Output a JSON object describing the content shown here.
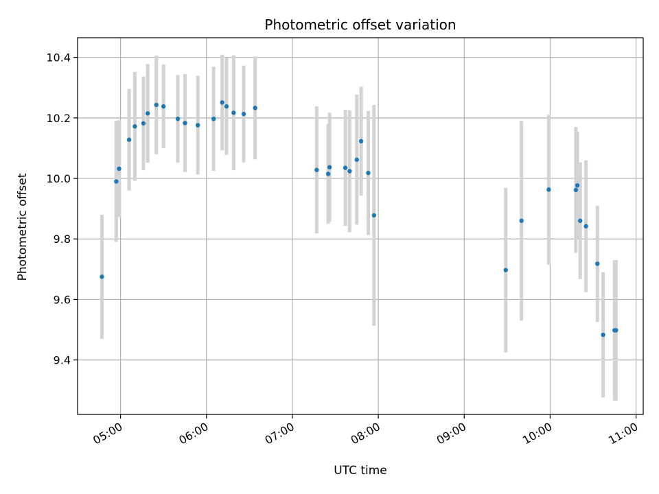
{
  "chart_data": {
    "type": "scatter",
    "title": "Photometric offset variation",
    "xlabel": "UTC time",
    "ylabel": "Photometric offset",
    "x_ticks": [
      "05:00",
      "06:00",
      "07:00",
      "08:00",
      "09:00",
      "10:00",
      "11:00"
    ],
    "y_ticks": [
      "9.4",
      "9.6",
      "9.8",
      "10.0",
      "10.2",
      "10.4"
    ],
    "xlim": [
      "04:30",
      "11:05"
    ],
    "ylim": [
      9.22,
      10.465
    ],
    "grid": true,
    "colors": {
      "marker": "#1f77b4",
      "errorbar": "#d3d3d3",
      "grid": "#b0b0b0"
    },
    "points": [
      {
        "t": "04:47",
        "y": 9.675,
        "err": 0.205
      },
      {
        "t": "04:57",
        "y": 9.99,
        "err": 0.2
      },
      {
        "t": "04:59",
        "y": 10.032,
        "err": 0.16
      },
      {
        "t": "05:06",
        "y": 10.128,
        "err": 0.168
      },
      {
        "t": "05:10",
        "y": 10.172,
        "err": 0.18
      },
      {
        "t": "05:16",
        "y": 10.182,
        "err": 0.155
      },
      {
        "t": "05:19",
        "y": 10.215,
        "err": 0.163
      },
      {
        "t": "05:25",
        "y": 10.243,
        "err": 0.163
      },
      {
        "t": "05:30",
        "y": 10.238,
        "err": 0.138
      },
      {
        "t": "05:40",
        "y": 10.197,
        "err": 0.145
      },
      {
        "t": "05:45",
        "y": 10.183,
        "err": 0.162
      },
      {
        "t": "05:54",
        "y": 10.176,
        "err": 0.163
      },
      {
        "t": "06:05",
        "y": 10.197,
        "err": 0.172
      },
      {
        "t": "06:11",
        "y": 10.251,
        "err": 0.158
      },
      {
        "t": "06:14",
        "y": 10.238,
        "err": 0.16
      },
      {
        "t": "06:19",
        "y": 10.217,
        "err": 0.19
      },
      {
        "t": "06:26",
        "y": 10.213,
        "err": 0.16
      },
      {
        "t": "06:34",
        "y": 10.233,
        "err": 0.17
      },
      {
        "t": "07:17",
        "y": 10.028,
        "err": 0.21
      },
      {
        "t": "07:25",
        "y": 10.015,
        "err": 0.165
      },
      {
        "t": "07:26",
        "y": 10.037,
        "err": 0.18
      },
      {
        "t": "07:37",
        "y": 10.035,
        "err": 0.192
      },
      {
        "t": "07:40",
        "y": 10.024,
        "err": 0.202
      },
      {
        "t": "07:45",
        "y": 10.062,
        "err": 0.215
      },
      {
        "t": "07:48",
        "y": 10.123,
        "err": 0.18
      },
      {
        "t": "07:53",
        "y": 10.018,
        "err": 0.205
      },
      {
        "t": "07:57",
        "y": 9.878,
        "err": 0.365
      },
      {
        "t": "09:29",
        "y": 9.697,
        "err": 0.272
      },
      {
        "t": "09:40",
        "y": 9.86,
        "err": 0.33
      },
      {
        "t": "09:59",
        "y": 9.963,
        "err": 0.248
      },
      {
        "t": "10:18",
        "y": 9.962,
        "err": 0.208
      },
      {
        "t": "10:19",
        "y": 9.977,
        "err": 0.178
      },
      {
        "t": "10:21",
        "y": 9.86,
        "err": 0.193
      },
      {
        "t": "10:25",
        "y": 9.842,
        "err": 0.218
      },
      {
        "t": "10:33",
        "y": 9.718,
        "err": 0.192
      },
      {
        "t": "10:37",
        "y": 9.483,
        "err": 0.207
      },
      {
        "t": "10:45",
        "y": 9.498,
        "err": 0.232
      },
      {
        "t": "10:46",
        "y": 9.498,
        "err": 0.232
      }
    ]
  }
}
